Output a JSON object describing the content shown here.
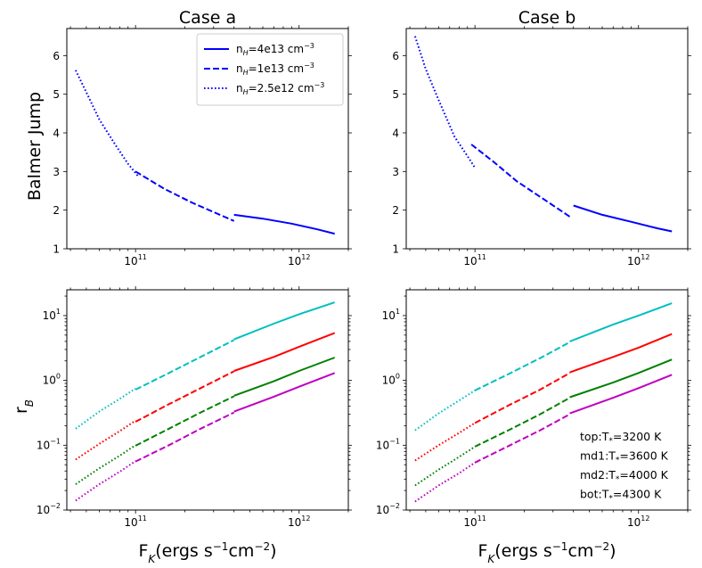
{
  "chart_data": [
    {
      "id": "case-a-balmer",
      "type": "line",
      "title": "Case a",
      "xlabel": "",
      "ylabel": "Balmer Jump",
      "xscale": "log",
      "yscale": "linear",
      "xlim": [
        38000000000.0,
        2000000000000.0
      ],
      "ylim": [
        1,
        6.7
      ],
      "yticks": [
        "1",
        "2",
        "3",
        "4",
        "5",
        "6"
      ],
      "xticks": [
        {
          "base": "10",
          "exp": "11"
        },
        {
          "base": "10",
          "exp": "12"
        }
      ],
      "legend": {
        "placement": "top-right",
        "entries": [
          {
            "label": "n",
            "sub": "H",
            "rest": "=4e13 cm",
            "sup": "−3",
            "style": "solid"
          },
          {
            "label": "n",
            "sub": "H",
            "rest": "=1e13 cm",
            "sup": "−3",
            "style": "dashed"
          },
          {
            "label": "n",
            "sub": "H",
            "rest": "=2.5e12 cm",
            "sup": "−3",
            "style": "dotted"
          }
        ]
      },
      "series": [
        {
          "name": "nH=4e13",
          "style": "solid",
          "color": "#0000ff",
          "x": [
            400000000000.0,
            600000000000.0,
            900000000000.0,
            1300000000000.0,
            1650000000000.0
          ],
          "y": [
            1.88,
            1.78,
            1.65,
            1.5,
            1.39
          ]
        },
        {
          "name": "nH=1e13",
          "style": "dashed",
          "color": "#0000ff",
          "x": [
            100000000000.0,
            150000000000.0,
            220000000000.0,
            300000000000.0,
            400000000000.0
          ],
          "y": [
            3.0,
            2.55,
            2.2,
            1.95,
            1.72
          ]
        },
        {
          "name": "nH=2.5e12",
          "style": "dotted",
          "color": "#0000ff",
          "x": [
            43000000000.0,
            50000000000.0,
            60000000000.0,
            75000000000.0,
            90000000000.0,
            105000000000.0
          ],
          "y": [
            5.62,
            5.05,
            4.35,
            3.7,
            3.2,
            2.85
          ]
        }
      ]
    },
    {
      "id": "case-b-balmer",
      "type": "line",
      "title": "Case b",
      "xlabel": "",
      "ylabel": "",
      "xscale": "log",
      "yscale": "linear",
      "xlim": [
        38000000000.0,
        2000000000000.0
      ],
      "ylim": [
        1,
        6.7
      ],
      "yticks": [
        "1",
        "2",
        "3",
        "4",
        "5",
        "6"
      ],
      "xticks": [
        {
          "base": "10",
          "exp": "11"
        },
        {
          "base": "10",
          "exp": "12"
        }
      ],
      "series": [
        {
          "name": "nH=4e13",
          "style": "solid",
          "color": "#0000ff",
          "x": [
            400000000000.0,
            600000000000.0,
            900000000000.0,
            1300000000000.0,
            1600000000000.0
          ],
          "y": [
            2.12,
            1.88,
            1.7,
            1.53,
            1.45
          ]
        },
        {
          "name": "nH=1e13",
          "style": "dashed",
          "color": "#0000ff",
          "x": [
            95000000000.0,
            130000000000.0,
            180000000000.0,
            260000000000.0,
            380000000000.0
          ],
          "y": [
            3.7,
            3.25,
            2.75,
            2.3,
            1.83
          ]
        },
        {
          "name": "nH=2.5e12",
          "style": "dotted",
          "color": "#0000ff",
          "x": [
            43000000000.0,
            50000000000.0,
            60000000000.0,
            75000000000.0,
            90000000000.0,
            100000000000.0
          ],
          "y": [
            6.5,
            5.65,
            4.85,
            3.9,
            3.4,
            3.1
          ]
        }
      ]
    },
    {
      "id": "case-a-rb",
      "type": "line",
      "title": "",
      "xlabel": "F_K(ergs s^-1 cm^-2)",
      "ylabel": "r_B",
      "xscale": "log",
      "yscale": "log",
      "xlim": [
        38000000000.0,
        2000000000000.0
      ],
      "ylim": [
        0.01,
        25
      ],
      "yticks": [
        {
          "base": "10",
          "exp": "−2"
        },
        {
          "base": "10",
          "exp": "−1"
        },
        {
          "base": "10",
          "exp": "0"
        },
        {
          "base": "10",
          "exp": "1"
        }
      ],
      "xticks": [
        {
          "base": "10",
          "exp": "11"
        },
        {
          "base": "10",
          "exp": "12"
        }
      ],
      "series": [
        {
          "name": "top-solid",
          "style": "solid",
          "color": "#00bfbf",
          "x": [
            400000000000.0,
            700000000000.0,
            1000000000000.0,
            1650000000000.0
          ],
          "y": [
            4.3,
            7.5,
            10.5,
            16.0
          ]
        },
        {
          "name": "top-dashed",
          "style": "dashed",
          "color": "#00bfbf",
          "x": [
            100000000000.0,
            160000000000.0,
            250000000000.0,
            400000000000.0
          ],
          "y": [
            0.72,
            1.3,
            2.3,
            4.2
          ]
        },
        {
          "name": "top-dotted",
          "style": "dotted",
          "color": "#00bfbf",
          "x": [
            43000000000.0,
            60000000000.0,
            80000000000.0,
            100000000000.0
          ],
          "y": [
            0.18,
            0.33,
            0.52,
            0.75
          ]
        },
        {
          "name": "md1-solid",
          "style": "solid",
          "color": "#ff0000",
          "x": [
            400000000000.0,
            700000000000.0,
            1000000000000.0,
            1650000000000.0
          ],
          "y": [
            1.4,
            2.3,
            3.3,
            5.4
          ]
        },
        {
          "name": "md1-dashed",
          "style": "dashed",
          "color": "#ff0000",
          "x": [
            100000000000.0,
            160000000000.0,
            250000000000.0,
            400000000000.0
          ],
          "y": [
            0.23,
            0.43,
            0.76,
            1.38
          ]
        },
        {
          "name": "md1-dotted",
          "style": "dotted",
          "color": "#ff0000",
          "x": [
            43000000000.0,
            60000000000.0,
            80000000000.0,
            100000000000.0
          ],
          "y": [
            0.06,
            0.105,
            0.165,
            0.24
          ]
        },
        {
          "name": "md2-solid",
          "style": "solid",
          "color": "#008000",
          "x": [
            400000000000.0,
            700000000000.0,
            1000000000000.0,
            1650000000000.0
          ],
          "y": [
            0.58,
            0.97,
            1.4,
            2.25
          ]
        },
        {
          "name": "md2-dashed",
          "style": "dashed",
          "color": "#008000",
          "x": [
            100000000000.0,
            160000000000.0,
            250000000000.0,
            400000000000.0
          ],
          "y": [
            0.098,
            0.18,
            0.32,
            0.57
          ]
        },
        {
          "name": "md2-dotted",
          "style": "dotted",
          "color": "#008000",
          "x": [
            43000000000.0,
            60000000000.0,
            80000000000.0,
            100000000000.0
          ],
          "y": [
            0.025,
            0.044,
            0.069,
            0.1
          ]
        },
        {
          "name": "bot-solid",
          "style": "solid",
          "color": "#bf00bf",
          "x": [
            400000000000.0,
            700000000000.0,
            1000000000000.0,
            1650000000000.0
          ],
          "y": [
            0.33,
            0.56,
            0.8,
            1.3
          ]
        },
        {
          "name": "bot-dashed",
          "style": "dashed",
          "color": "#bf00bf",
          "x": [
            100000000000.0,
            160000000000.0,
            250000000000.0,
            400000000000.0
          ],
          "y": [
            0.056,
            0.1,
            0.18,
            0.32
          ]
        },
        {
          "name": "bot-dotted",
          "style": "dotted",
          "color": "#bf00bf",
          "x": [
            43000000000.0,
            60000000000.0,
            80000000000.0,
            100000000000.0
          ],
          "y": [
            0.014,
            0.025,
            0.039,
            0.057
          ]
        }
      ]
    },
    {
      "id": "case-b-rb",
      "type": "line",
      "title": "",
      "xlabel": "F_K(ergs s^-1 cm^-2)",
      "ylabel": "",
      "xscale": "log",
      "yscale": "log",
      "xlim": [
        38000000000.0,
        2000000000000.0
      ],
      "ylim": [
        0.01,
        25
      ],
      "yticks": [
        {
          "base": "10",
          "exp": "−2"
        },
        {
          "base": "10",
          "exp": "−1"
        },
        {
          "base": "10",
          "exp": "0"
        },
        {
          "base": "10",
          "exp": "1"
        }
      ],
      "xticks": [
        {
          "base": "10",
          "exp": "11"
        },
        {
          "base": "10",
          "exp": "12"
        }
      ],
      "annotations": [
        {
          "prefix": "top:T",
          "sub": "*",
          "value": "=3200 K"
        },
        {
          "prefix": "md1:T",
          "sub": "*",
          "value": "=3600 K"
        },
        {
          "prefix": "md2:T",
          "sub": "*",
          "value": "=4000 K"
        },
        {
          "prefix": "bot:T",
          "sub": "*",
          "value": "=4300 K"
        }
      ],
      "series": [
        {
          "name": "top-solid",
          "style": "solid",
          "color": "#00bfbf",
          "x": [
            380000000000.0,
            700000000000.0,
            1000000000000.0,
            1600000000000.0
          ],
          "y": [
            4.0,
            7.3,
            10.0,
            15.5
          ]
        },
        {
          "name": "top-dashed",
          "style": "dashed",
          "color": "#00bfbf",
          "x": [
            100000000000.0,
            160000000000.0,
            250000000000.0,
            380000000000.0
          ],
          "y": [
            0.7,
            1.25,
            2.2,
            3.9
          ]
        },
        {
          "name": "top-dotted",
          "style": "dotted",
          "color": "#00bfbf",
          "x": [
            43000000000.0,
            60000000000.0,
            80000000000.0,
            100000000000.0
          ],
          "y": [
            0.17,
            0.31,
            0.49,
            0.7
          ]
        },
        {
          "name": "md1-solid",
          "style": "solid",
          "color": "#ff0000",
          "x": [
            380000000000.0,
            700000000000.0,
            1000000000000.0,
            1600000000000.0
          ],
          "y": [
            1.33,
            2.3,
            3.2,
            5.2
          ]
        },
        {
          "name": "md1-dashed",
          "style": "dashed",
          "color": "#ff0000",
          "x": [
            100000000000.0,
            160000000000.0,
            250000000000.0,
            380000000000.0
          ],
          "y": [
            0.22,
            0.41,
            0.72,
            1.3
          ]
        },
        {
          "name": "md1-dotted",
          "style": "dotted",
          "color": "#ff0000",
          "x": [
            43000000000.0,
            60000000000.0,
            80000000000.0,
            100000000000.0
          ],
          "y": [
            0.058,
            0.1,
            0.155,
            0.22
          ]
        },
        {
          "name": "md2-solid",
          "style": "solid",
          "color": "#008000",
          "x": [
            380000000000.0,
            700000000000.0,
            1000000000000.0,
            1600000000000.0
          ],
          "y": [
            0.55,
            0.93,
            1.3,
            2.1
          ]
        },
        {
          "name": "md2-dashed",
          "style": "dashed",
          "color": "#008000",
          "x": [
            100000000000.0,
            160000000000.0,
            250000000000.0,
            380000000000.0
          ],
          "y": [
            0.095,
            0.17,
            0.3,
            0.54
          ]
        },
        {
          "name": "md2-dotted",
          "style": "dotted",
          "color": "#008000",
          "x": [
            43000000000.0,
            60000000000.0,
            80000000000.0,
            100000000000.0
          ],
          "y": [
            0.024,
            0.042,
            0.066,
            0.095
          ]
        },
        {
          "name": "bot-solid",
          "style": "solid",
          "color": "#bf00bf",
          "x": [
            380000000000.0,
            700000000000.0,
            1000000000000.0,
            1600000000000.0
          ],
          "y": [
            0.31,
            0.54,
            0.76,
            1.22
          ]
        },
        {
          "name": "bot-dashed",
          "style": "dashed",
          "color": "#bf00bf",
          "x": [
            100000000000.0,
            160000000000.0,
            250000000000.0,
            380000000000.0
          ],
          "y": [
            0.054,
            0.097,
            0.17,
            0.3
          ]
        },
        {
          "name": "bot-dotted",
          "style": "dotted",
          "color": "#bf00bf",
          "x": [
            43000000000.0,
            60000000000.0,
            80000000000.0,
            100000000000.0
          ],
          "y": [
            0.0135,
            0.024,
            0.037,
            0.054
          ]
        }
      ]
    }
  ]
}
